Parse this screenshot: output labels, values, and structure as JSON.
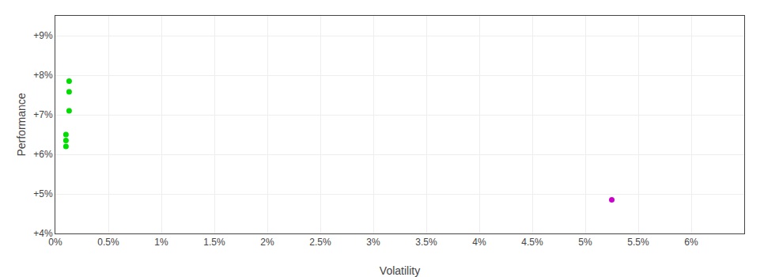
{
  "chart_data": {
    "type": "scatter",
    "x_label": "Volatility",
    "y_label": "Performance",
    "xlim": [
      0.0,
      0.065
    ],
    "ylim": [
      0.04,
      0.095
    ],
    "xticks": [
      {
        "value": 0.0,
        "label": "0%"
      },
      {
        "value": 0.005,
        "label": "0.5%"
      },
      {
        "value": 0.01,
        "label": "1%"
      },
      {
        "value": 0.015,
        "label": "1.5%"
      },
      {
        "value": 0.02,
        "label": "2%"
      },
      {
        "value": 0.025,
        "label": "2.5%"
      },
      {
        "value": 0.03,
        "label": "3%"
      },
      {
        "value": 0.035,
        "label": "3.5%"
      },
      {
        "value": 0.04,
        "label": "4%"
      },
      {
        "value": 0.045,
        "label": "4.5%"
      },
      {
        "value": 0.05,
        "label": "5%"
      },
      {
        "value": 0.055,
        "label": "5.5%"
      },
      {
        "value": 0.06,
        "label": "6%"
      }
    ],
    "yticks": [
      {
        "value": 0.04,
        "label": "+4%"
      },
      {
        "value": 0.05,
        "label": "+5%"
      },
      {
        "value": 0.06,
        "label": "+6%"
      },
      {
        "value": 0.07,
        "label": "+7%"
      },
      {
        "value": 0.08,
        "label": "+8%"
      },
      {
        "value": 0.09,
        "label": "+9%"
      }
    ],
    "grid": true,
    "series": [
      {
        "color": "#00dd00",
        "x": [
          0.0013,
          0.0013,
          0.0013,
          0.001,
          0.001,
          0.001
        ],
        "values": [
          0.0785,
          0.0758,
          0.071,
          0.065,
          0.0635,
          0.062
        ]
      },
      {
        "color": "#cc00cc",
        "x": [
          0.0525
        ],
        "values": [
          0.0485
        ]
      }
    ]
  }
}
